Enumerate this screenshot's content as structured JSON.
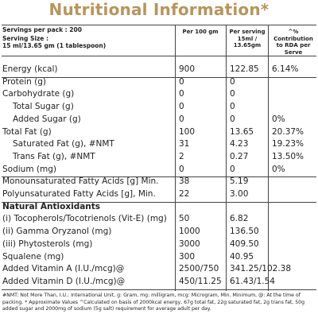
{
  "title": "Nutritional Information*",
  "header": {
    "servings": "Servings per pack : 200",
    "serving_size_label": "Serving Size :",
    "serving_size": "15 ml/13.65 gm (1 tablespoon)",
    "columns": [
      "Per 100 gm",
      "Per serving 15ml / 13.65gm",
      "^% Contribution to RDA per Serve"
    ]
  },
  "table": {
    "rows": [
      {
        "label": "Energy (kcal)",
        "cells": [
          "900",
          "122.85",
          "6.14%"
        ]
      },
      {
        "label": "Protein (g)",
        "cells": [
          "0",
          "0",
          null
        ]
      },
      {
        "label": "Carbohydrate (g)",
        "cells": [
          "0",
          "0",
          null
        ]
      },
      {
        "label": "Total Sugar (g)",
        "indent": true,
        "cells": [
          "0",
          "0",
          null
        ]
      },
      {
        "label": "Added Sugar (g)",
        "indent": true,
        "cells": [
          "0",
          "0",
          "0%"
        ]
      },
      {
        "label": "Total Fat (g)",
        "cells": [
          "100",
          "13.65",
          "20.37%"
        ]
      },
      {
        "label": "Saturated Fat (g), #NMT",
        "indent": true,
        "cells": [
          "31",
          "4.23",
          "19.23%"
        ]
      },
      {
        "label": "Trans Fat (g), #NMT",
        "indent": true,
        "cells": [
          "2",
          "0.27",
          "13.50%"
        ]
      },
      {
        "label": "Sodium (mg)",
        "cells": [
          "0",
          "0",
          "0%"
        ]
      },
      {
        "label": "Monounsaturated Fatty Acids [g] Min.",
        "cells": [
          "38",
          "5.19",
          null
        ]
      },
      {
        "label": "Polyunsaturated Fatty Acids [g], Min.",
        "cells": [
          "22",
          "3.00",
          null
        ]
      },
      {
        "label": "Natural Antioxidants",
        "heading": true,
        "cells": [
          null,
          null,
          null
        ]
      },
      {
        "label": "(i) Tocopherols/Tocotrienols (Vit-E) (mg)",
        "cells": [
          "50",
          "6.82",
          null
        ]
      },
      {
        "label": "(ii) Gamma Oryzanol (mg)",
        "cells": [
          "1000",
          "136.50",
          null
        ]
      },
      {
        "label": "(iii) Phytosterols (mg)",
        "cells": [
          "3000",
          "409.50",
          null
        ]
      },
      {
        "label": "Squalene (mg)",
        "cells": [
          "300",
          "40.95",
          null
        ]
      },
      {
        "label": "Added Vitamin A (I.U./mcg)@",
        "cells": [
          "2500/750",
          "341.25/102.38",
          null
        ]
      },
      {
        "label": "Added Vitamin D (I.U./mcg)@",
        "cells": [
          "450/11.25",
          "61.43/1.54",
          null
        ]
      }
    ]
  },
  "footnote": "#NMT: Not More Than, I.U.: International Unit, g: Gram, mg: milligram, mcg: Microgram, Min. Minimum, @: At the time of packing. * Approximate Values ^Calculated on basis of 2000kcal energy, 67g total fat, 22g saturated fat, 2g trans fat, 50g added sugar and 2000mg of sodium (5g salt) requirement for average adult per day."
}
